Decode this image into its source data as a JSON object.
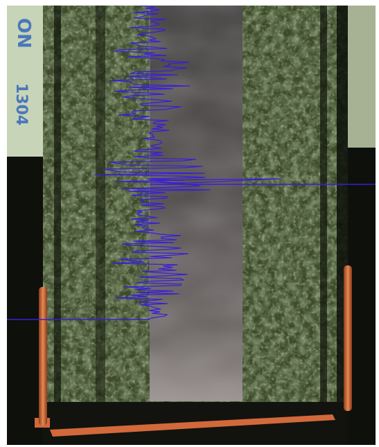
{
  "photo": {
    "label_sticker": {
      "text_top": "ON",
      "text_number": "1304"
    },
    "colors": {
      "background": "#0e100c",
      "rock_dark": "#1f2718",
      "rock_mid": "#3d4a2b",
      "rock_light": "#6b7a4e",
      "sample_strip": "#4a4444",
      "copper_wire": "#d2693b",
      "trace_line": "#3a1fd6",
      "sticker": "#c8d4b8",
      "sticker_text": "#4a78b8"
    }
  }
}
